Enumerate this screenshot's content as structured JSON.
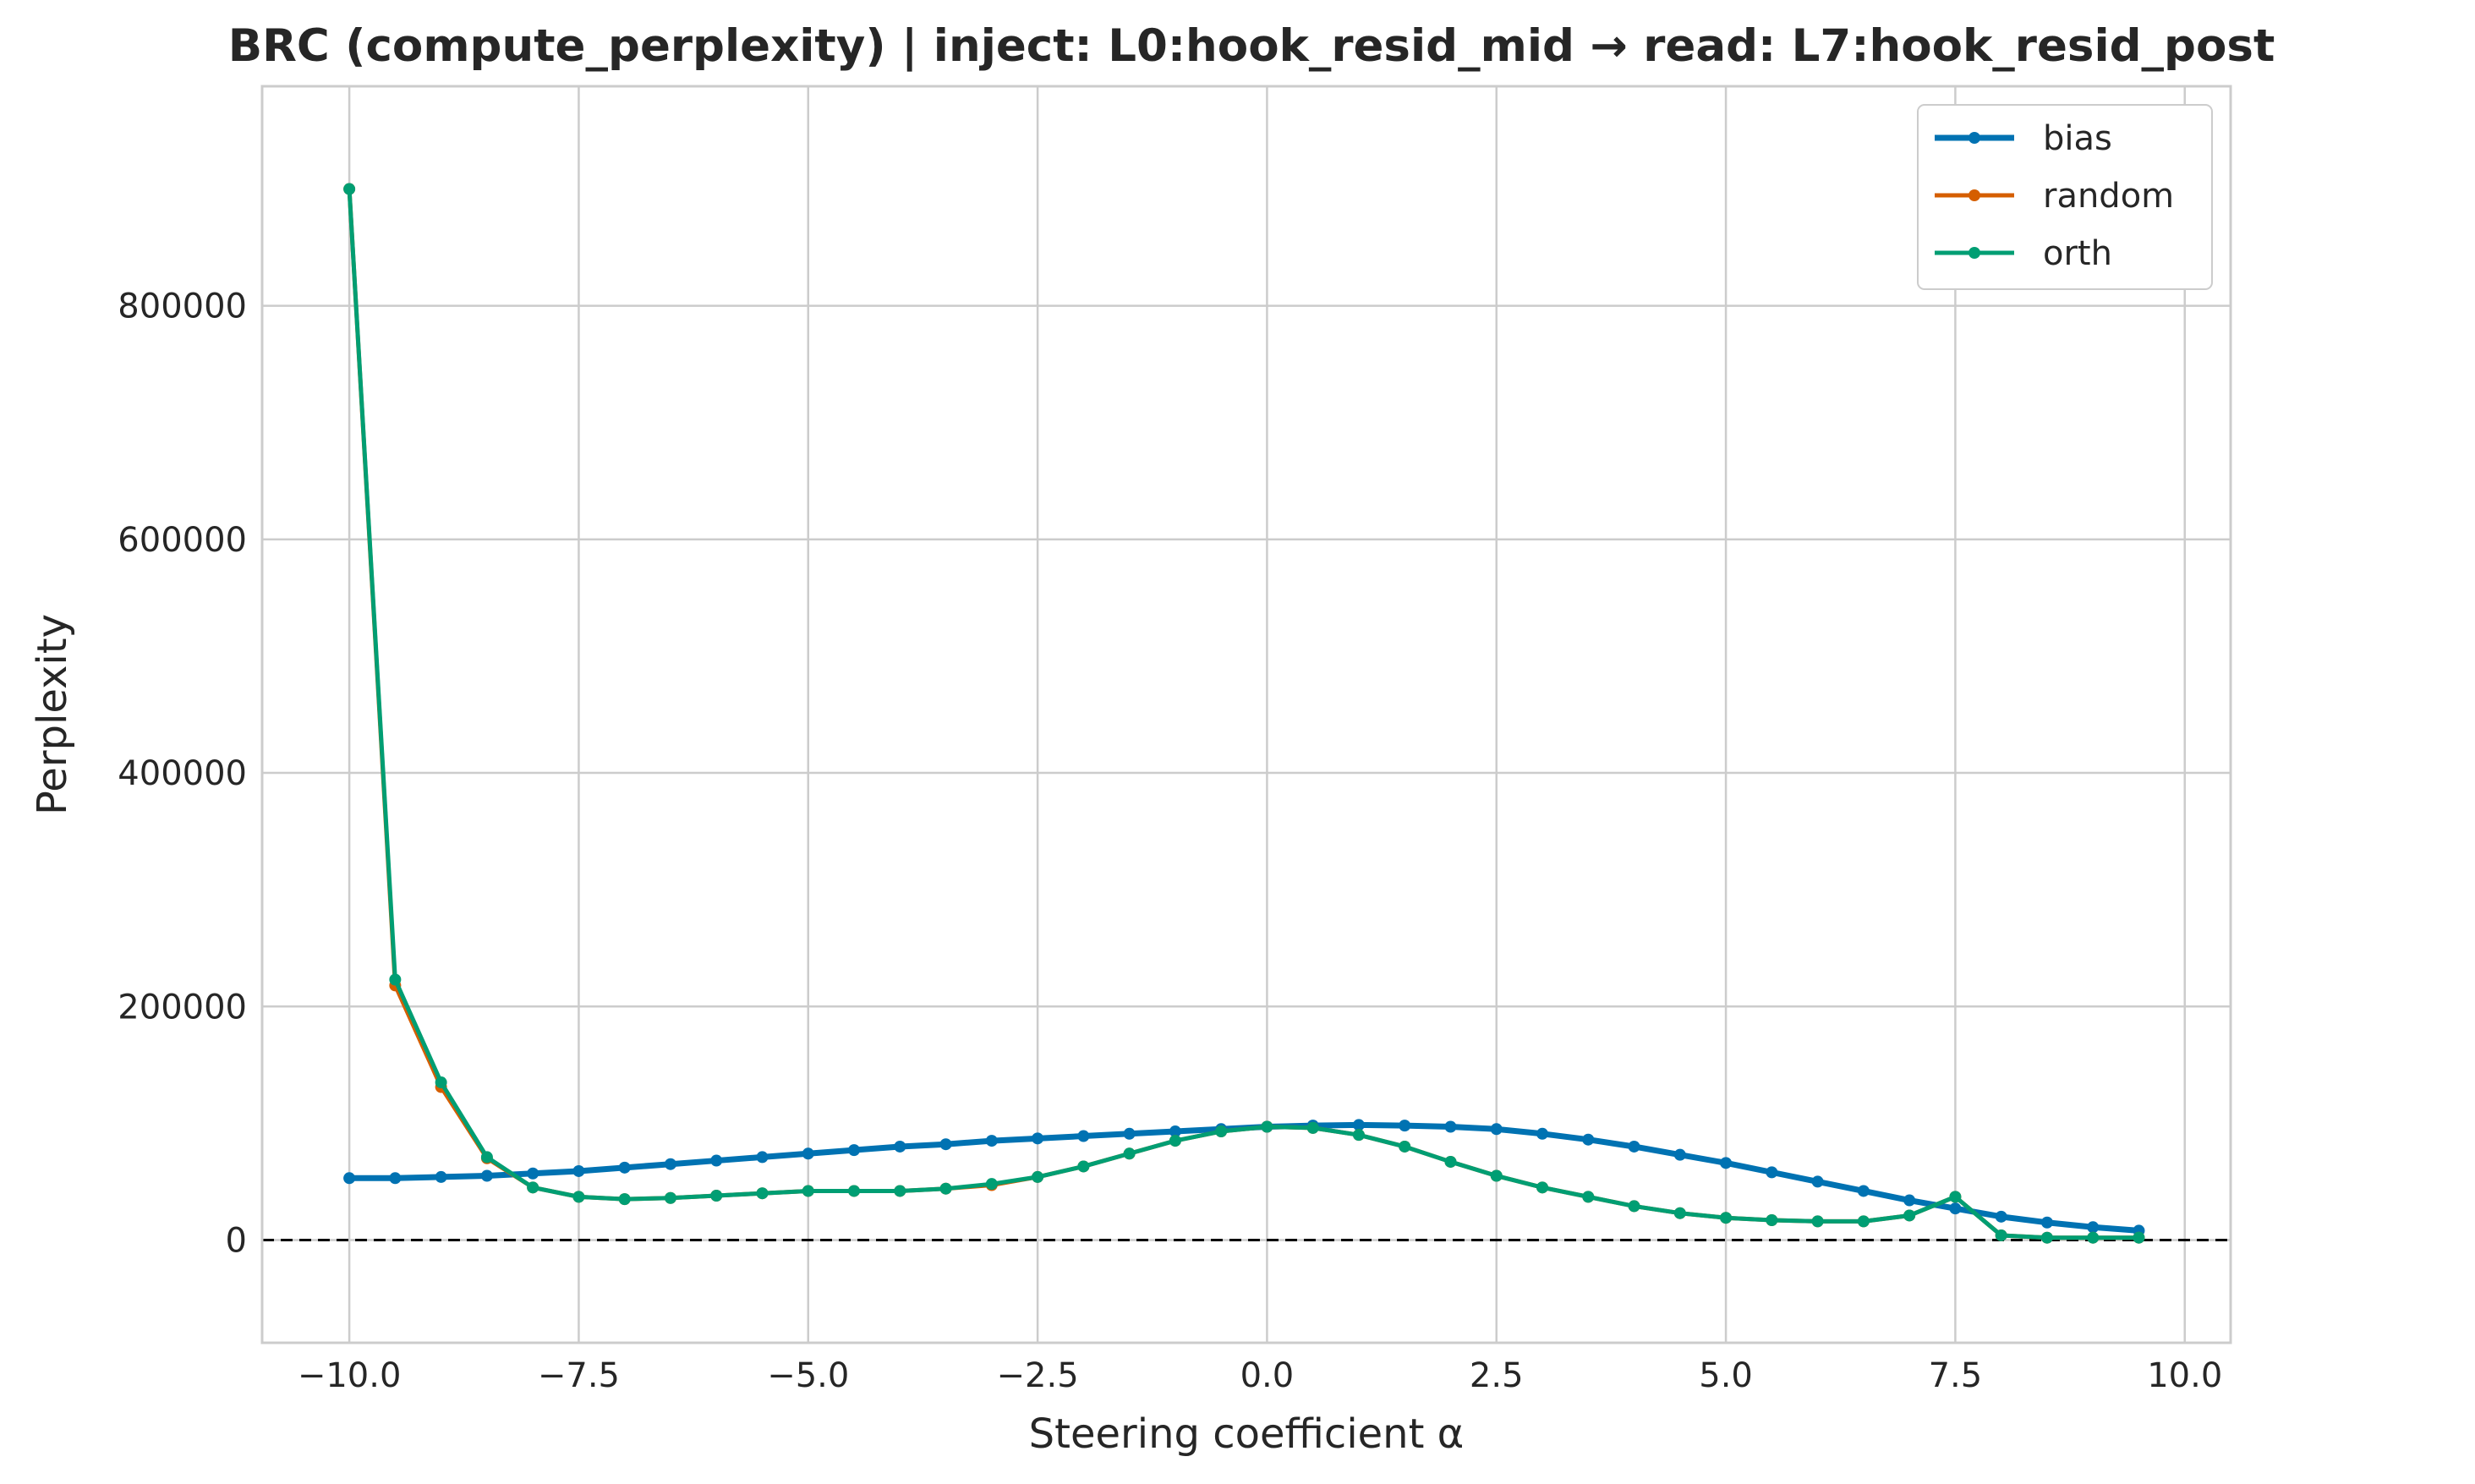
{
  "chart_data": {
    "type": "line",
    "title": "BRC (compute_perplexity) | inject: L0:hook_resid_mid → read: L7:hook_resid_post",
    "xlabel": "Steering coefficient α",
    "ylabel": "Perplexity",
    "xlim": [
      -10.95,
      10.5
    ],
    "ylim": [
      -88000,
      988000
    ],
    "x_ticks": [
      -10.0,
      -7.5,
      -5.0,
      -2.5,
      0.0,
      2.5,
      5.0,
      7.5,
      10.0
    ],
    "x_tick_labels": [
      "−10.0",
      "−7.5",
      "−5.0",
      "−2.5",
      "0.0",
      "2.5",
      "5.0",
      "7.5",
      "10.0"
    ],
    "y_ticks": [
      0,
      200000,
      400000,
      600000,
      800000
    ],
    "y_tick_labels": [
      "0",
      "200000",
      "400000",
      "600000",
      "800000"
    ],
    "grid": true,
    "legend_position": "top-right",
    "reference_line": {
      "y": 0,
      "style": "dashed",
      "color": "#000000"
    },
    "x": [
      -10.0,
      -9.5,
      -9.0,
      -8.5,
      -8.0,
      -7.5,
      -7.0,
      -6.5,
      -6.0,
      -5.5,
      -5.0,
      -4.5,
      -4.0,
      -3.5,
      -3.0,
      -2.5,
      -2.0,
      -1.5,
      -1.0,
      -0.5,
      0.0,
      0.5,
      1.0,
      1.5,
      2.0,
      2.5,
      3.0,
      3.5,
      4.0,
      4.5,
      5.0,
      5.5,
      6.0,
      6.5,
      7.0,
      7.5,
      8.0,
      8.5,
      9.0,
      9.5
    ],
    "series": [
      {
        "name": "bias",
        "color": "#0072b2",
        "values": [
          53000,
          53000,
          54000,
          55000,
          57000,
          59000,
          62000,
          65000,
          68000,
          71000,
          74000,
          77000,
          80000,
          82000,
          85000,
          87000,
          89000,
          91000,
          93000,
          95000,
          97000,
          98000,
          98500,
          98000,
          97000,
          95000,
          91000,
          86000,
          80000,
          73000,
          66000,
          58000,
          50000,
          42000,
          34000,
          27000,
          20000,
          15000,
          11000,
          8000
        ]
      },
      {
        "name": "random",
        "color": "#d55e00",
        "values": [
          900000,
          218000,
          131000,
          70000,
          45000,
          37000,
          35000,
          36000,
          38000,
          40000,
          42000,
          42000,
          42000,
          44000,
          47000,
          54000,
          63000,
          74000,
          85000,
          93000,
          97000,
          96000,
          90000,
          80000,
          67000,
          55000,
          45000,
          37000,
          29000,
          23000,
          19000,
          17000,
          16000,
          16000,
          21000,
          37000,
          4000,
          2000,
          2000,
          2000
        ]
      },
      {
        "name": "orth",
        "color": "#009e73",
        "values": [
          900000,
          223000,
          135000,
          71000,
          45000,
          37000,
          35000,
          36000,
          38000,
          40000,
          42000,
          42000,
          42000,
          44000,
          48000,
          54000,
          63000,
          74000,
          85000,
          93000,
          97000,
          96000,
          90000,
          80000,
          67000,
          55000,
          45000,
          37000,
          29000,
          23000,
          19000,
          17000,
          16000,
          16000,
          21000,
          37000,
          4000,
          2000,
          2000,
          2000
        ]
      }
    ]
  }
}
